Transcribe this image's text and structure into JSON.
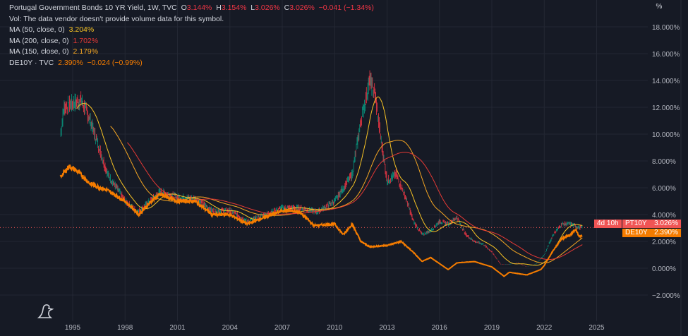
{
  "header": {
    "title": "Portugal Government Bonds 10 YR Yield, 1W, TVC",
    "o_label": "O",
    "o": "3.144%",
    "h_label": "H",
    "h": "3.154%",
    "l_label": "L",
    "l": "3.026%",
    "c_label": "C",
    "c": "3.026%",
    "change": "−0.041 (−1.34%)",
    "vol": "Vol: The data vendor doesn't provide volume data for this symbol.",
    "ma50_label": "MA (50, close, 0)",
    "ma50": "3.204%",
    "ma200_label": "MA (200, close, 0)",
    "ma200": "1.702%",
    "ma150_label": "MA (150, close, 0)",
    "ma150": "2.179%",
    "de_label": "DE10Y · TVC",
    "de_value": "2.390%",
    "de_change": "−0.024 (−0.99%)"
  },
  "scale_button": "%",
  "badges": {
    "pt_symbol": "PT10Y",
    "pt_value": "3.026%",
    "pt_countdown": "4d 10h",
    "de_symbol": "DE10Y",
    "de_value": "2.390%"
  },
  "colors": {
    "pt": "#f23645",
    "pt_up": "#089981",
    "ma50": "#f7c325",
    "ma200": "#e53935",
    "ma150": "#f5a623",
    "de": "#f57c00",
    "bg": "#161a25",
    "grid": "#232733"
  },
  "chart_data": {
    "type": "line",
    "title": "Portugal Government Bonds 10 YR Yield vs DE10Y",
    "ylim": [
      -3,
      19
    ],
    "xlim": [
      1992.2,
      2028.4
    ],
    "y_ticks": [
      "18.000%",
      "16.000%",
      "14.000%",
      "12.000%",
      "10.000%",
      "8.000%",
      "6.000%",
      "4.000%",
      "2.000%",
      "0.000%",
      "−2.000%"
    ],
    "y_tick_values": [
      18,
      16,
      14,
      12,
      10,
      8,
      6,
      4,
      2,
      0,
      -2
    ],
    "x_ticks": [
      "1995",
      "1998",
      "2001",
      "2004",
      "2007",
      "2010",
      "2013",
      "2016",
      "2019",
      "2022",
      "2025"
    ],
    "x_tick_values": [
      1995,
      1998,
      2001,
      2004,
      2007,
      2010,
      2013,
      2016,
      2019,
      2022,
      2025
    ],
    "series": [
      {
        "name": "PT10Y",
        "x": [
          1994.3,
          1994.5,
          1995,
          1995.5,
          1996,
          1996.5,
          1997,
          1997.5,
          1998,
          1998.7,
          1999,
          2000,
          2001,
          2002,
          2003,
          2004,
          2005,
          2006,
          2007,
          2008,
          2009,
          2010,
          2010.5,
          2011,
          2011.5,
          2012,
          2012.3,
          2012.6,
          2013,
          2013.5,
          2014,
          2014.5,
          2015,
          2015.5,
          2016,
          2016.5,
          2017,
          2017.5,
          2018,
          2018.5,
          2019,
          2019.5,
          2020,
          2020.5,
          2021,
          2021.5,
          2022,
          2022.5,
          2023,
          2023.5,
          2024
        ],
        "y": [
          10,
          12,
          12.3,
          12.5,
          11,
          9,
          7,
          6,
          5,
          4.2,
          4.5,
          5.7,
          5.3,
          5.2,
          4.3,
          4.3,
          3.5,
          4,
          4.5,
          4.5,
          4.2,
          5,
          6,
          7,
          11,
          14,
          13,
          10,
          6.5,
          7,
          5.5,
          3.5,
          2.5,
          2.8,
          3.5,
          3.3,
          3.8,
          2.5,
          2,
          1.8,
          1.2,
          0.3,
          0.3,
          0.4,
          0.1,
          0.3,
          1,
          2.5,
          3.3,
          3.3,
          3.03
        ]
      },
      {
        "name": "DE10Y",
        "x": [
          1994.3,
          1994.8,
          1995.3,
          1996,
          1997,
          1998,
          1998.8,
          1999.5,
          2000,
          2001,
          2002,
          2003,
          2004,
          2005,
          2006,
          2007,
          2008,
          2008.8,
          2009,
          2010,
          2010.5,
          2011,
          2011.5,
          2012,
          2013,
          2013.8,
          2014.5,
          2015,
          2015.5,
          2016.5,
          2017,
          2018,
          2019,
          2019.7,
          2020,
          2021,
          2021.8,
          2022,
          2022.5,
          2023,
          2023.5,
          2023.8,
          2024
        ],
        "y": [
          6.8,
          7.6,
          7.2,
          6.3,
          5.8,
          5,
          4,
          5,
          5.5,
          5,
          5,
          4,
          4,
          3.3,
          3.8,
          4.3,
          4.2,
          3.2,
          3.2,
          3.3,
          2.5,
          3.3,
          2,
          1.6,
          1.7,
          2,
          1.2,
          0.5,
          0.8,
          -0.1,
          0.4,
          0.5,
          0.1,
          -0.6,
          -0.3,
          -0.5,
          -0.1,
          0.2,
          1.3,
          2.2,
          2.5,
          2.9,
          2.39
        ]
      }
    ],
    "moving_averages": [
      {
        "name": "MA 50",
        "period": 50
      },
      {
        "name": "MA 150",
        "period": 150
      },
      {
        "name": "MA 200",
        "period": 200
      }
    ]
  }
}
